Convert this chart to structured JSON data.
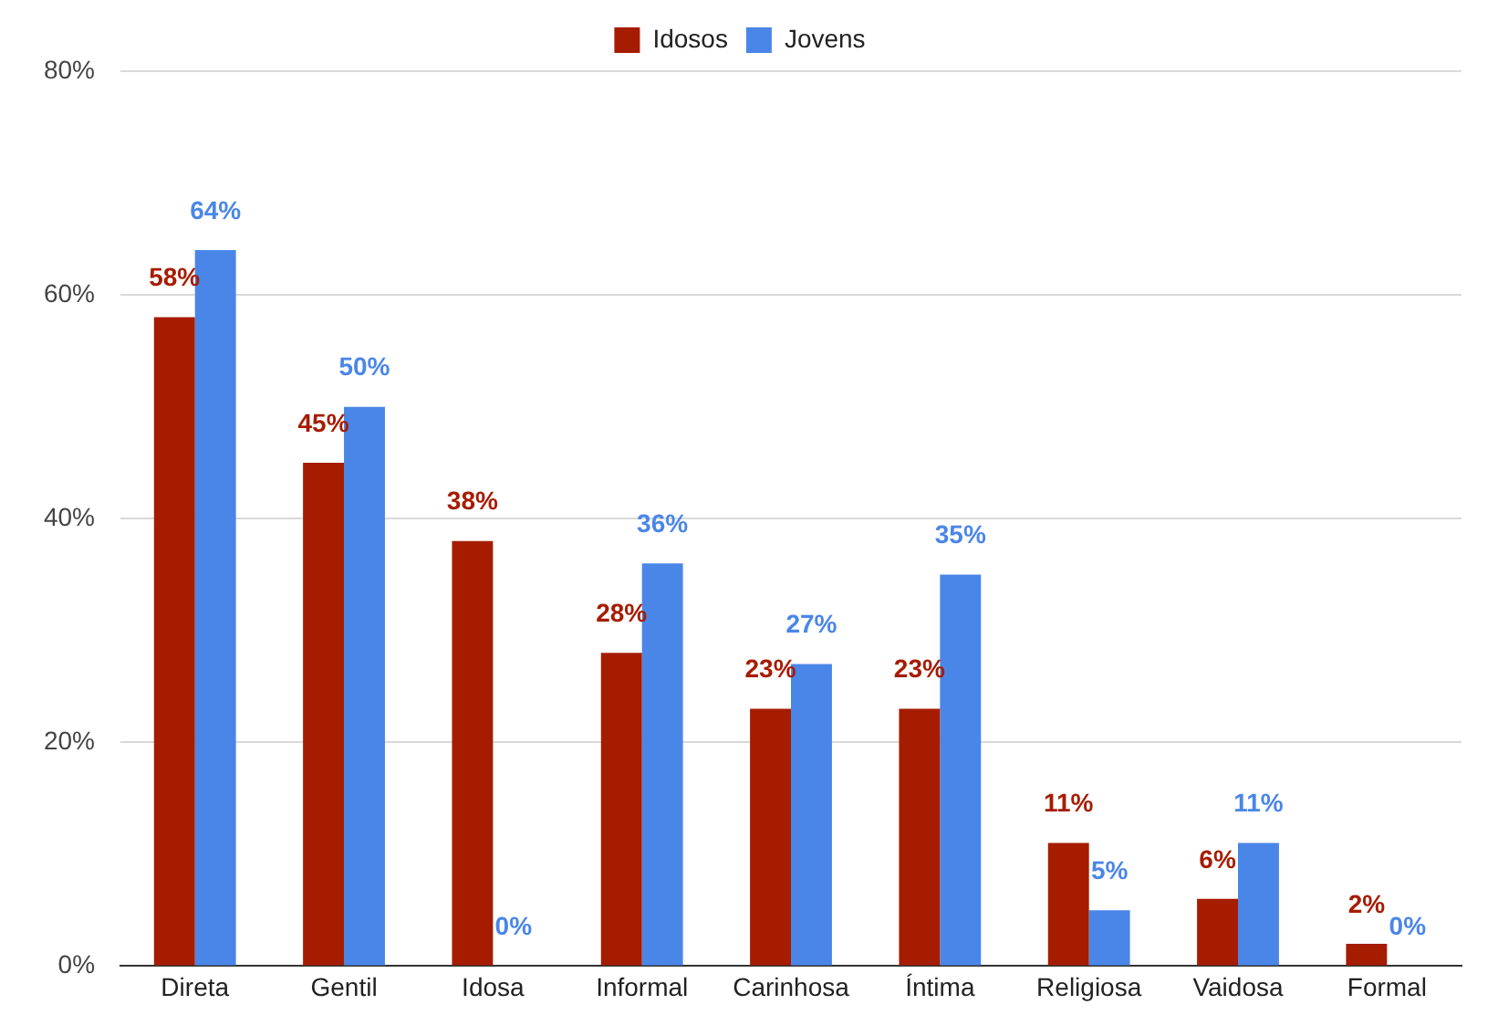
{
  "chart_data": {
    "type": "bar",
    "categories": [
      "Direta",
      "Gentil",
      "Idosa",
      "Informal",
      "Carinhosa",
      "Íntima",
      "Religiosa",
      "Vaidosa",
      "Formal"
    ],
    "series": [
      {
        "name": "Idosos",
        "color": "#a61c00",
        "values": [
          58,
          45,
          38,
          28,
          23,
          23,
          11,
          6,
          2
        ],
        "value_labels": [
          "58%",
          "45%",
          "38%",
          "28%",
          "23%",
          "23%",
          "11%",
          "6%",
          "2%"
        ]
      },
      {
        "name": "Jovens",
        "color": "#4a86e8",
        "values": [
          64,
          50,
          0,
          36,
          27,
          35,
          5,
          11,
          0
        ],
        "value_labels": [
          "64%",
          "50%",
          "0%",
          "36%",
          "27%",
          "35%",
          "5%",
          "11%",
          "0%"
        ]
      }
    ],
    "ylim": [
      0,
      80
    ],
    "yticks": [
      {
        "value": 0,
        "label": "0%"
      },
      {
        "value": 20,
        "label": "20%"
      },
      {
        "value": 40,
        "label": "40%"
      },
      {
        "value": 60,
        "label": "60%"
      },
      {
        "value": 80,
        "label": "80%"
      }
    ],
    "grid": "y",
    "legend": "top"
  }
}
